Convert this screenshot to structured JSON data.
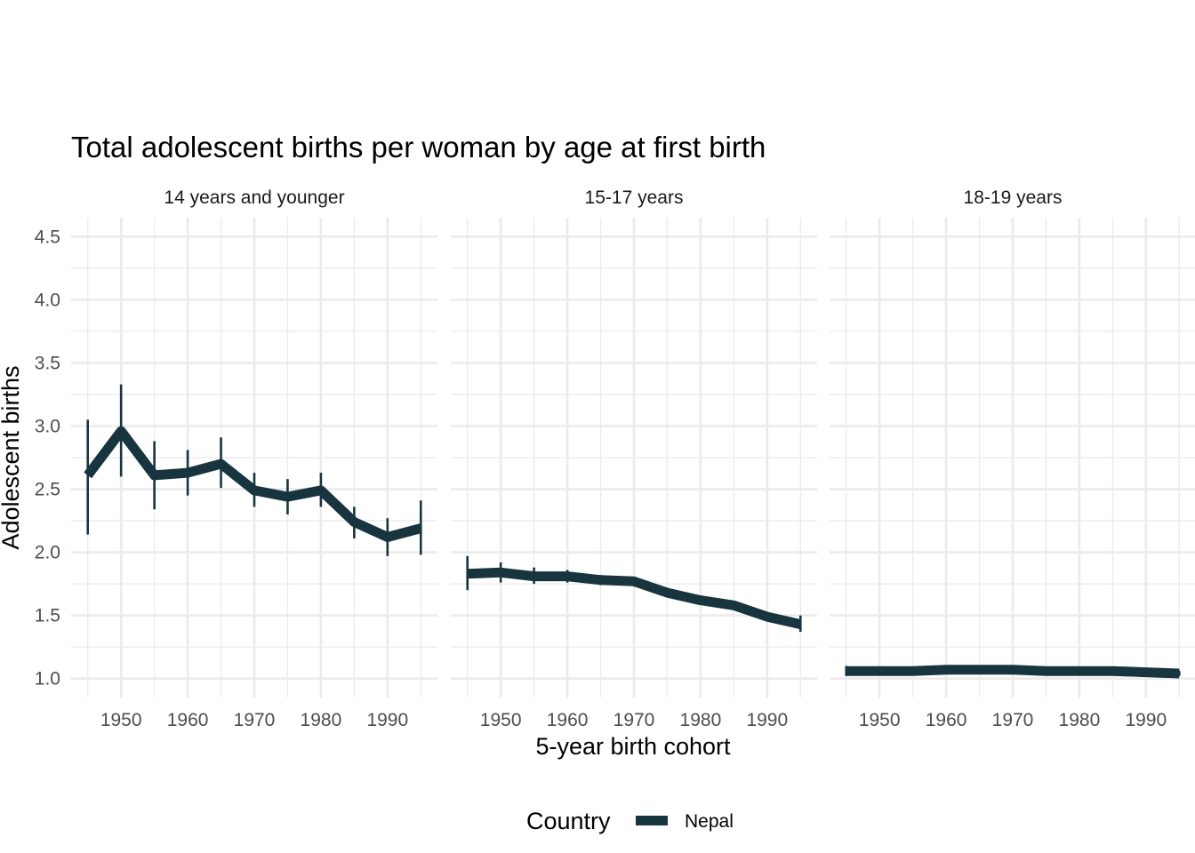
{
  "chart_data": {
    "type": "line",
    "title": "Total adolescent births per woman by age at first birth",
    "xlabel": "5-year birth cohort",
    "ylabel": "Adolescent births",
    "xlim": [
      1942.5,
      1997.5
    ],
    "ylim": [
      0.85,
      4.65
    ],
    "x_ticks": [
      1950,
      1960,
      1970,
      1980,
      1990
    ],
    "x_tick_labels": [
      "1950",
      "1960",
      "1970",
      "1980",
      "1990"
    ],
    "y_ticks": [
      1.0,
      1.5,
      2.0,
      2.5,
      3.0,
      3.5,
      4.0,
      4.5
    ],
    "y_tick_labels": [
      "1.0",
      "1.5",
      "2.0",
      "2.5",
      "3.0",
      "3.5",
      "4.0",
      "4.5"
    ],
    "grid": true,
    "legend": {
      "title": "Country",
      "position": "bottom",
      "entries": [
        "Nepal"
      ]
    },
    "series_color": "#17343f",
    "panels": [
      {
        "facet": "14 years and younger",
        "series": [
          {
            "name": "Nepal",
            "x": [
              1945,
              1950,
              1955,
              1960,
              1965,
              1970,
              1975,
              1980,
              1985,
              1990,
              1995
            ],
            "y": [
              2.61,
              2.96,
              2.61,
              2.63,
              2.7,
              2.49,
              2.44,
              2.49,
              2.24,
              2.12,
              2.19
            ],
            "lower": [
              2.14,
              2.6,
              2.34,
              2.45,
              2.51,
              2.36,
              2.3,
              2.36,
              2.11,
              1.97,
              1.98
            ],
            "upper": [
              3.05,
              3.33,
              2.88,
              2.81,
              2.91,
              2.63,
              2.58,
              2.63,
              2.36,
              2.27,
              2.41
            ]
          }
        ]
      },
      {
        "facet": "15-17 years",
        "series": [
          {
            "name": "Nepal",
            "x": [
              1945,
              1950,
              1955,
              1960,
              1965,
              1970,
              1975,
              1980,
              1985,
              1990,
              1995
            ],
            "y": [
              1.83,
              1.84,
              1.81,
              1.81,
              1.78,
              1.77,
              1.68,
              1.62,
              1.58,
              1.49,
              1.43
            ],
            "lower": [
              1.7,
              1.76,
              1.75,
              1.76,
              1.74,
              1.74,
              1.65,
              1.59,
              1.55,
              1.46,
              1.37
            ],
            "upper": [
              1.97,
              1.92,
              1.88,
              1.86,
              1.82,
              1.8,
              1.71,
              1.65,
              1.61,
              1.52,
              1.5
            ]
          }
        ]
      },
      {
        "facet": "18-19 years",
        "series": [
          {
            "name": "Nepal",
            "x": [
              1945,
              1950,
              1955,
              1960,
              1965,
              1970,
              1975,
              1980,
              1985,
              1990,
              1995
            ],
            "y": [
              1.06,
              1.06,
              1.06,
              1.07,
              1.07,
              1.07,
              1.06,
              1.06,
              1.06,
              1.05,
              1.04
            ],
            "lower": [
              1.02,
              1.04,
              1.04,
              1.06,
              1.06,
              1.06,
              1.05,
              1.05,
              1.05,
              1.04,
              1.02
            ],
            "upper": [
              1.1,
              1.08,
              1.08,
              1.08,
              1.08,
              1.08,
              1.07,
              1.07,
              1.07,
              1.06,
              1.06
            ]
          }
        ]
      }
    ]
  }
}
